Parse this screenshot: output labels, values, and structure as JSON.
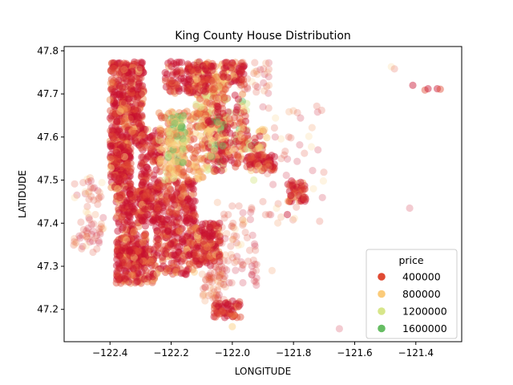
{
  "chart_data": {
    "type": "scatter",
    "title": "King County House Distribution",
    "xlabel": "LONGITUDE",
    "ylabel": "LATIDUDE",
    "xlim": [
      -122.55,
      -121.25
    ],
    "ylim": [
      47.125,
      47.81
    ],
    "xticks": [
      -122.4,
      -122.2,
      -122.0,
      -121.8,
      -121.6,
      -121.4
    ],
    "xtick_labels": [
      "−122.4",
      "−122.2",
      "−122.0",
      "−121.8",
      "−121.6",
      "−121.4"
    ],
    "yticks": [
      47.2,
      47.3,
      47.4,
      47.5,
      47.6,
      47.7,
      47.8
    ],
    "ytick_labels": [
      "47.2",
      "47.3",
      "47.4",
      "47.5",
      "47.6",
      "47.7",
      "47.8"
    ],
    "grid": false,
    "legend": {
      "title": "price",
      "position": "lower-right",
      "entries": [
        {
          "label": "400000",
          "color": "#e04a33"
        },
        {
          "label": "800000",
          "color": "#fbcb7a"
        },
        {
          "label": "1200000",
          "color": "#d7e68a"
        },
        {
          "label": "1600000",
          "color": "#66bd63"
        }
      ]
    },
    "color_scale": [
      "#c8102e",
      "#e04a33",
      "#f08a4b",
      "#fbcb7a",
      "#d7e68a",
      "#66bd63"
    ],
    "clusters": [
      {
        "x": [
          -122.4,
          -122.29
        ],
        "y": [
          47.58,
          47.775
        ],
        "n": 380,
        "tone": "hot"
      },
      {
        "x": [
          -122.4,
          -122.33
        ],
        "y": [
          47.48,
          47.58
        ],
        "n": 170,
        "tone": "hot"
      },
      {
        "x": [
          -122.38,
          -122.28
        ],
        "y": [
          47.3,
          47.48
        ],
        "n": 260,
        "tone": "hot"
      },
      {
        "x": [
          -122.38,
          -122.25
        ],
        "y": [
          47.26,
          47.34
        ],
        "n": 150,
        "tone": "hot"
      },
      {
        "x": [
          -122.3,
          -122.23
        ],
        "y": [
          47.4,
          47.62
        ],
        "n": 170,
        "tone": "hot"
      },
      {
        "x": [
          -122.25,
          -122.12
        ],
        "y": [
          47.28,
          47.5
        ],
        "n": 330,
        "tone": "hot"
      },
      {
        "x": [
          -122.12,
          -122.04
        ],
        "y": [
          47.3,
          47.4
        ],
        "n": 140,
        "tone": "hot"
      },
      {
        "x": [
          -122.24,
          -122.08
        ],
        "y": [
          47.5,
          47.66
        ],
        "n": 200,
        "tone": "warm"
      },
      {
        "x": [
          -122.21,
          -122.15
        ],
        "y": [
          47.54,
          47.65
        ],
        "n": 80,
        "tone": "cool"
      },
      {
        "x": [
          -122.12,
          -122.02
        ],
        "y": [
          47.62,
          47.775
        ],
        "n": 160,
        "tone": "warm"
      },
      {
        "x": [
          -122.22,
          -122.06
        ],
        "y": [
          47.7,
          47.775
        ],
        "n": 140,
        "tone": "hot"
      },
      {
        "x": [
          -122.08,
          -122.02
        ],
        "y": [
          47.52,
          47.64
        ],
        "n": 100,
        "tone": "mix"
      },
      {
        "x": [
          -122.05,
          -121.95
        ],
        "y": [
          47.53,
          47.7
        ],
        "n": 110,
        "tone": "mix"
      },
      {
        "x": [
          -122.03,
          -121.96
        ],
        "y": [
          47.72,
          47.775
        ],
        "n": 60,
        "tone": "hot"
      },
      {
        "x": [
          -121.95,
          -121.86
        ],
        "y": [
          47.52,
          47.56
        ],
        "n": 70,
        "tone": "hot"
      },
      {
        "x": [
          -121.98,
          -121.88
        ],
        "y": [
          47.57,
          47.62
        ],
        "n": 40,
        "tone": "mix"
      },
      {
        "x": [
          -121.82,
          -121.76
        ],
        "y": [
          47.45,
          47.5
        ],
        "n": 50,
        "tone": "hot"
      },
      {
        "x": [
          -122.06,
          -121.97
        ],
        "y": [
          47.18,
          47.22
        ],
        "n": 55,
        "tone": "hot"
      },
      {
        "x": [
          -122.1,
          -122.02
        ],
        "y": [
          47.22,
          47.3
        ],
        "n": 55,
        "tone": "pale"
      },
      {
        "x": [
          -122.52,
          -122.42
        ],
        "y": [
          47.33,
          47.51
        ],
        "n": 70,
        "tone": "pale"
      },
      {
        "x": [
          -122.05,
          -121.92
        ],
        "y": [
          47.25,
          47.45
        ],
        "n": 80,
        "tone": "pale"
      },
      {
        "x": [
          -121.9,
          -121.7
        ],
        "y": [
          47.4,
          47.68
        ],
        "n": 50,
        "tone": "pale"
      },
      {
        "x": [
          -121.98,
          -121.88
        ],
        "y": [
          47.7,
          47.775
        ],
        "n": 30,
        "tone": "pale"
      }
    ],
    "points": [
      {
        "x": -121.48,
        "y": 47.763,
        "tone": "pale"
      },
      {
        "x": -121.47,
        "y": 47.758,
        "tone": "pale"
      },
      {
        "x": -121.41,
        "y": 47.72,
        "tone": "hot"
      },
      {
        "x": -121.37,
        "y": 47.709,
        "tone": "hot"
      },
      {
        "x": -121.36,
        "y": 47.712,
        "tone": "hot"
      },
      {
        "x": -121.33,
        "y": 47.712,
        "tone": "hot"
      },
      {
        "x": -121.32,
        "y": 47.711,
        "tone": "hot"
      },
      {
        "x": -121.42,
        "y": 47.435,
        "tone": "pale"
      },
      {
        "x": -121.65,
        "y": 47.155,
        "tone": "pale"
      },
      {
        "x": -121.72,
        "y": 47.57,
        "tone": "pale"
      },
      {
        "x": -121.82,
        "y": 47.42,
        "tone": "hot"
      },
      {
        "x": -121.9,
        "y": 47.45,
        "tone": "pale"
      },
      {
        "x": -121.93,
        "y": 47.5,
        "tone": "cool"
      },
      {
        "x": -121.84,
        "y": 47.55,
        "tone": "pale"
      },
      {
        "x": -121.88,
        "y": 47.72,
        "tone": "pale"
      },
      {
        "x": -121.9,
        "y": 47.67,
        "tone": "pale"
      },
      {
        "x": -121.86,
        "y": 47.6,
        "tone": "pale"
      },
      {
        "x": -122.0,
        "y": 47.16,
        "tone": "warm"
      },
      {
        "x": -121.87,
        "y": 47.29,
        "tone": "pale"
      }
    ]
  }
}
